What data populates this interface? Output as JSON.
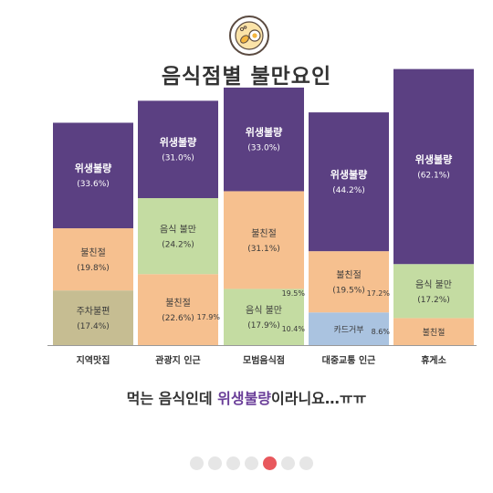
{
  "title": "음식점별 불만요인",
  "icon": "food-plate-icon",
  "caption": {
    "before": "먹는 음식인데 ",
    "highlight": "위생불량",
    "after": "이라니요…ㅠㅠ"
  },
  "colors": {
    "위생불량": "#5b4082",
    "불친절": "#f6c08f",
    "주차불편": "#c6bd92",
    "음식 불만": "#c4dca2",
    "카드거부": "#aac3e0",
    "highlight": "#6b3f99",
    "active_dot": "#e8585d"
  },
  "pagination": {
    "count": 7,
    "active_index": 4
  },
  "chart_data": {
    "type": "bar",
    "stacked": true,
    "categories": [
      "지역맛집",
      "관광지 인근",
      "모범음식점",
      "대중교통 인근",
      "휴게소"
    ],
    "stacks": [
      [
        {
          "label": "주차불편",
          "value": 17.4
        },
        {
          "label": "불친절",
          "value": 19.8
        },
        {
          "label": "위생불량",
          "value": 33.6
        }
      ],
      [
        {
          "label": "불친절",
          "value": 22.6
        },
        {
          "label": "음식 불만",
          "value": 24.2
        },
        {
          "label": "위생불량",
          "value": 31.0
        }
      ],
      [
        {
          "label": "음식 불만",
          "value": 17.9,
          "callout": "17.9%"
        },
        {
          "label": "불친절",
          "value": 31.1
        },
        {
          "label": "위생불량",
          "value": 33.0
        }
      ],
      [
        {
          "label": "카드거부",
          "value": 10.4,
          "callout": "10.4%"
        },
        {
          "label": "불친절",
          "value": 19.5,
          "callout": "19.5%"
        },
        {
          "label": "위생불량",
          "value": 44.2
        }
      ],
      [
        {
          "label": "불친절",
          "value": 8.6,
          "callout": "8.6%"
        },
        {
          "label": "음식 불만",
          "value": 17.2,
          "callout": "17.2%"
        },
        {
          "label": "위생불량",
          "value": 62.1
        }
      ]
    ],
    "grid": false,
    "legend": "none"
  }
}
